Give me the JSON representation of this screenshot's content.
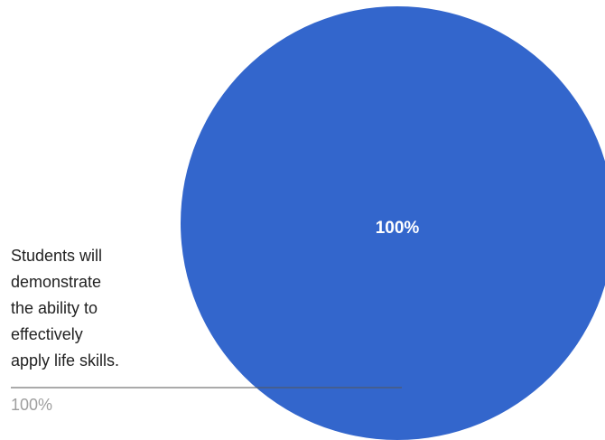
{
  "chart_data": {
    "type": "pie",
    "title": "",
    "categories": [
      "Students will demonstrate the ability to effectively apply life skills."
    ],
    "values": [
      100
    ],
    "slice_labels": [
      "100%"
    ],
    "legend_position": "left",
    "legend": [
      {
        "lines": [
          "Students will",
          "demonstrate",
          "the ability to",
          "effectively",
          "apply life skills."
        ],
        "percent_label": "100%"
      }
    ],
    "colors": [
      "#3366cc"
    ],
    "leader_line_color": "#555555"
  }
}
